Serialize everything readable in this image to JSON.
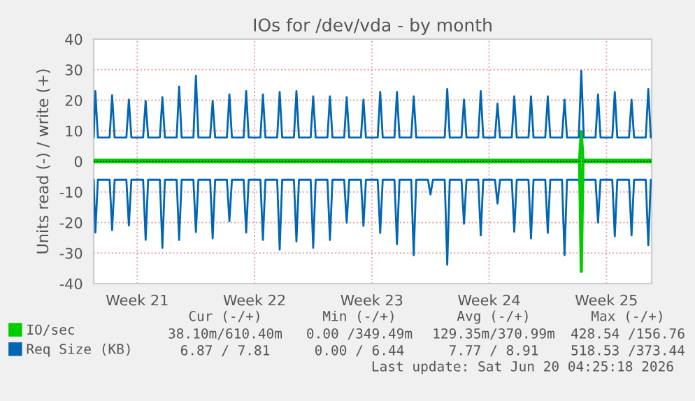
{
  "chart_data": {
    "type": "line",
    "title": "IOs for /dev/vda - by month",
    "ylabel": "Units read (-) / write (+)",
    "x": [
      "2026-05-15T09:36",
      "2026-05-15T12:00",
      "2026-05-15T15:36",
      "2026-05-16T08:24",
      "2026-05-16T12:00",
      "2026-05-16T15:36",
      "2026-05-17T08:24",
      "2026-05-17T12:00",
      "2026-05-17T15:36",
      "2026-05-18T08:24",
      "2026-05-18T12:00",
      "2026-05-18T15:36",
      "2026-05-19T08:24",
      "2026-05-19T12:00",
      "2026-05-19T15:36",
      "2026-05-20T08:24",
      "2026-05-20T12:00",
      "2026-05-20T15:36",
      "2026-05-21T08:24",
      "2026-05-21T12:00",
      "2026-05-21T15:36",
      "2026-05-22T08:24",
      "2026-05-22T12:00",
      "2026-05-22T15:36",
      "2026-05-23T08:24",
      "2026-05-23T12:00",
      "2026-05-23T15:36",
      "2026-05-24T08:24",
      "2026-05-24T12:00",
      "2026-05-24T15:36",
      "2026-05-25T08:24",
      "2026-05-25T12:00",
      "2026-05-25T15:36",
      "2026-05-26T08:24",
      "2026-05-26T12:00",
      "2026-05-26T15:36",
      "2026-05-27T08:24",
      "2026-05-27T12:00",
      "2026-05-27T15:36",
      "2026-05-28T08:24",
      "2026-05-28T12:00",
      "2026-05-28T15:36",
      "2026-05-29T08:24",
      "2026-05-29T12:00",
      "2026-05-29T15:36",
      "2026-05-30T08:24",
      "2026-05-30T12:00",
      "2026-05-30T15:36",
      "2026-05-31T08:24",
      "2026-05-31T12:00",
      "2026-05-31T15:36",
      "2026-06-01T08:24",
      "2026-06-01T12:00",
      "2026-06-01T15:36",
      "2026-06-02T08:24",
      "2026-06-02T12:00",
      "2026-06-02T15:36",
      "2026-06-03T08:24",
      "2026-06-03T12:00",
      "2026-06-03T15:36",
      "2026-06-04T08:24",
      "2026-06-04T12:00",
      "2026-06-04T15:36",
      "2026-06-05T08:24",
      "2026-06-05T12:00",
      "2026-06-05T15:36",
      "2026-06-06T08:24",
      "2026-06-06T12:00",
      "2026-06-06T15:36",
      "2026-06-07T08:24",
      "2026-06-07T12:00",
      "2026-06-07T15:36",
      "2026-06-08T08:24",
      "2026-06-08T12:00",
      "2026-06-08T15:36",
      "2026-06-09T08:24",
      "2026-06-09T12:00",
      "2026-06-09T15:36",
      "2026-06-10T08:24",
      "2026-06-10T12:00",
      "2026-06-10T15:36",
      "2026-06-11T08:24",
      "2026-06-11T12:00",
      "2026-06-11T15:36",
      "2026-06-12T08:24",
      "2026-06-12T12:00",
      "2026-06-12T15:36",
      "2026-06-13T08:24",
      "2026-06-13T12:00",
      "2026-06-13T15:36",
      "2026-06-14T08:24",
      "2026-06-14T12:00",
      "2026-06-14T15:36",
      "2026-06-15T08:24",
      "2026-06-15T12:00",
      "2026-06-15T15:36",
      "2026-06-16T08:24",
      "2026-06-16T12:00",
      "2026-06-16T15:36",
      "2026-06-17T08:24",
      "2026-06-17T12:00",
      "2026-06-17T15:36"
    ],
    "series": [
      {
        "name": "Req Size (KB)",
        "color": "#0066b3",
        "values": [
          7.8,
          23,
          7.8,
          7.8,
          21.6,
          7.8,
          7.8,
          20.2,
          7.8,
          7.8,
          19.8,
          7.8,
          7.8,
          21,
          7.8,
          7.8,
          24.5,
          7.8,
          7.8,
          28,
          7.8,
          7.8,
          19.8,
          7.8,
          7.8,
          21.9,
          7.8,
          7.8,
          23,
          7.8,
          7.8,
          21.9,
          7.8,
          7.8,
          22.7,
          7.8,
          7.8,
          23,
          7.8,
          7.8,
          21.3,
          7.8,
          7.8,
          21.3,
          7.8,
          7.8,
          21,
          7.8,
          7.8,
          20.2,
          7.8,
          7.8,
          22.7,
          7.8,
          7.8,
          22.7,
          7.8,
          7.8,
          21.3,
          7.8,
          7.8,
          7.8,
          7.8,
          7.8,
          23.7,
          7.8,
          7.8,
          20.2,
          7.8,
          7.8,
          23,
          7.8,
          7.8,
          18.9,
          7.8,
          7.8,
          21.3,
          7.8,
          7.8,
          21.3,
          7.8,
          7.8,
          21.3,
          7.8,
          7.8,
          20.2,
          7.8,
          7.8,
          29.7,
          7.8,
          7.8,
          21.9,
          7.8,
          7.8,
          22.7,
          7.8,
          7.8,
          20.2,
          7.8,
          7.8,
          23.7,
          7.8
        ]
      },
      {
        "color": "#0066b3",
        "values": [
          -6,
          -23.3,
          -6,
          -6,
          -22.5,
          -6,
          -6,
          -21,
          -6,
          -6,
          -25.7,
          -6,
          -6,
          -28.3,
          -6,
          -6,
          -25.7,
          -6,
          -6,
          -23.1,
          -6,
          -6,
          -25.2,
          -6,
          -6,
          -19.6,
          -6,
          -6,
          -23.3,
          -6,
          -6,
          -25.7,
          -6,
          -6,
          -28.9,
          -6,
          -6,
          -26.2,
          -6,
          -6,
          -28.3,
          -6,
          -6,
          -25.7,
          -6,
          -6,
          -20.1,
          -6,
          -6,
          -21.1,
          -6,
          -6,
          -23.4,
          -6,
          -6,
          -27.1,
          -6,
          -6,
          -30.7,
          -6,
          -6,
          -10.8,
          -6,
          -6,
          -33.8,
          -6,
          -6,
          -20.4,
          -6,
          -6,
          -24.2,
          -6,
          -6,
          -13.8,
          -6,
          -6,
          -23,
          -6,
          -6,
          -25.2,
          -6,
          -6,
          -23.4,
          -6,
          -6,
          -30.7,
          -6,
          -6,
          -9.7,
          -6,
          -6,
          -20,
          -6,
          -6,
          -24.5,
          -6,
          -6,
          -24.2,
          -6,
          -6,
          -27.4,
          -6
        ]
      },
      {
        "name": "IO/sec",
        "color": "#00cc00",
        "x": [
          "2026-05-15T09:36",
          "2026-06-13T09:36",
          "2026-06-13T12:00",
          "2026-06-13T14:24",
          "2026-06-17T16:48"
        ],
        "values": [
          0.4,
          0.4,
          9.7,
          0.4,
          0.4
        ]
      },
      {
        "color": "#00cc00",
        "x": [
          "2026-05-15T09:36",
          "2026-06-13T09:36",
          "2026-06-13T12:00",
          "2026-06-13T14:24",
          "2026-06-17T16:48"
        ],
        "values": [
          -0.1,
          -0.1,
          -36,
          -0.1,
          -0.1
        ]
      }
    ],
    "xlim": [
      "2026-05-15T09:36",
      "2026-06-17T16:48"
    ],
    "xticks": [
      {
        "value": "2026-05-18",
        "label": "Week 21"
      },
      {
        "value": "2026-05-25",
        "label": "Week 22"
      },
      {
        "value": "2026-06-01",
        "label": "Week 23"
      },
      {
        "value": "2026-06-08",
        "label": "Week 24"
      },
      {
        "value": "2026-06-15",
        "label": "Week 25"
      }
    ],
    "ylim": [
      -40,
      40
    ],
    "yticks": [
      -40,
      -30,
      -20,
      -10,
      0,
      10,
      20,
      30,
      40
    ],
    "grid": true,
    "legend": "bottom left",
    "ref_lines": [
      {
        "axis": "y",
        "value": 0,
        "color": "#000000",
        "line_style": "dotted"
      }
    ],
    "annotations": [
      "Cur (-/+)",
      "Min (-/+)",
      "Avg (-/+)",
      "Max (-/+)",
      "38.10m/610.40m",
      "0.00 /349.49m",
      "129.35m/370.99m",
      "428.54 /156.76",
      "6.87 / 7.81",
      "0.00 / 6.44",
      "7.77 / 8.91",
      "518.53 /373.44",
      "Last update: Sat Jun 20 04:25:18 2026"
    ]
  }
}
